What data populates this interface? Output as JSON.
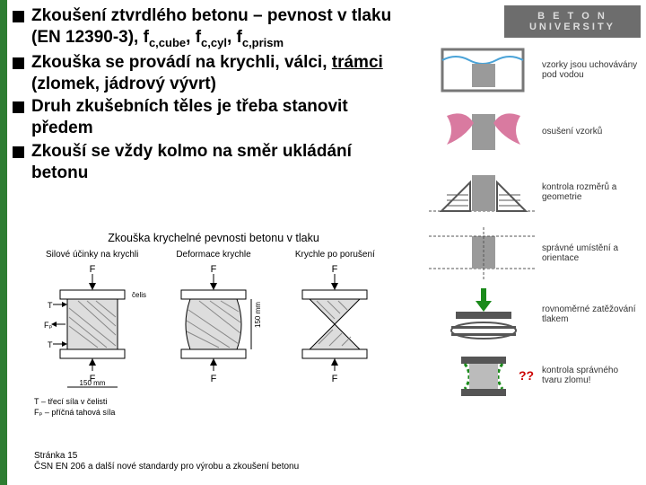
{
  "bullets": [
    {
      "html": "Zkoušení ztvrdlého betonu – pevnost v tlaku (EN 12390-3), f<span class='sub'>c,cube</span>, f<span class='sub'>c,cyl</span>, f<span class='sub'>c,prism</span>"
    },
    {
      "html": "Zkouška se provádí na krychli, válci, <span class='underline'>trámci</span> (zlomek, jádrový vývrt)"
    },
    {
      "html": "Druh zkušebních těles je třeba stanovit předem"
    },
    {
      "html": "Zkouší se vždy kolmo na směr ukládání betonu"
    }
  ],
  "logo": {
    "l1": "B E T O N",
    "l2": "UNIVERSITY"
  },
  "steps": [
    "vzorky jsou uchovávány pod vodou",
    "osušení vzorků",
    "kontrola rozměrů a geometrie",
    "správné umístění a orientace",
    "rovnoměrné zatěžování tlakem",
    "kontrola správného tvaru zlomu!"
  ],
  "diagram": {
    "title": "Zkouška krychelné pevnosti betonu v tlaku",
    "cols": [
      "Silové účinky na krychli",
      "Deformace krychle",
      "Krychle po porušení"
    ],
    "force": "F",
    "jaws": "čelisti lisu",
    "dim_w": "150 mm",
    "dim_h": "150 mm",
    "Fp": "Fₚ",
    "note1": "T – třecí síla v čelisti",
    "note2": "Fₚ – příčná tahová síla"
  },
  "footer": {
    "l1": "Stránka 15",
    "l2": "ČSN EN 206 a další nové standardy pro výrobu a zkoušení betonu"
  },
  "colors": {
    "green": "#2e7d32",
    "pink": "#d97aa0",
    "gray": "#9a9a9a",
    "darkgray": "#555",
    "greenArrow": "#1b8a1b",
    "hatch": "#888"
  }
}
